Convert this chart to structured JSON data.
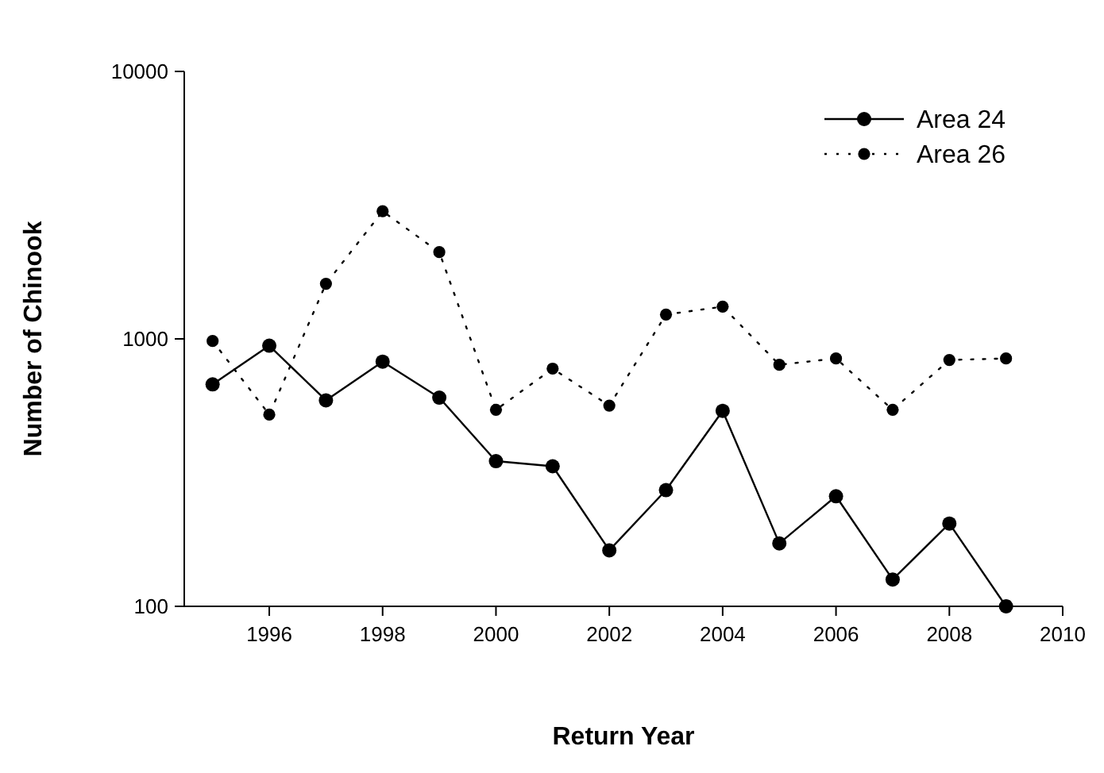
{
  "chart_data": {
    "type": "line",
    "xlabel": "Return Year",
    "ylabel": "Number of Chinook",
    "x": [
      1995,
      1996,
      1997,
      1998,
      1999,
      2000,
      2001,
      2002,
      2003,
      2004,
      2005,
      2006,
      2007,
      2008,
      2009
    ],
    "series": [
      {
        "name": "Area 24",
        "color": "#000000",
        "line_style": "solid",
        "values": [
          676,
          943,
          589,
          822,
          603,
          349,
          334,
          162,
          272,
          538,
          172,
          258,
          126,
          204,
          100
        ]
      },
      {
        "name": "Area 26",
        "color": "#000000",
        "line_style": "dotted",
        "values": [
          982,
          521,
          1607,
          3000,
          2110,
          543,
          774,
          563,
          1233,
          1320,
          800,
          845,
          543,
          834,
          845
        ]
      }
    ],
    "xlim": [
      1994.5,
      2010
    ],
    "xticks": [
      1996,
      1998,
      2000,
      2002,
      2004,
      2006,
      2008,
      2010
    ],
    "ylim": [
      100,
      10000
    ],
    "yticks": [
      100,
      1000,
      10000
    ],
    "log": "y",
    "marker": "circle",
    "legend": "top right",
    "grid": false
  }
}
